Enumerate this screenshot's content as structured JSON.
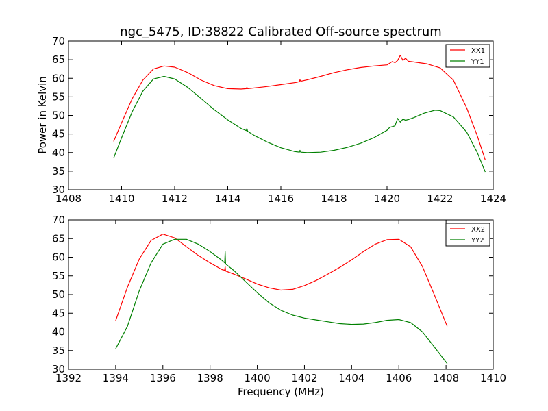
{
  "colors": {
    "red": "#ff0000",
    "green": "#008000"
  },
  "chart_data": [
    {
      "type": "line",
      "title": "ngc_5475, ID:38822 Calibrated Off-source spectrum",
      "xlabel": "",
      "ylabel": "Power in Kelvin",
      "xlim": [
        1408,
        1424
      ],
      "ylim": [
        30,
        70
      ],
      "xticks": [
        1408,
        1410,
        1412,
        1414,
        1416,
        1418,
        1420,
        1422,
        1424
      ],
      "yticks": [
        30,
        35,
        40,
        45,
        50,
        55,
        60,
        65,
        70
      ],
      "legend_position": "top-right",
      "series": [
        {
          "name": "XX1",
          "color": "#ff0000",
          "x": [
            1409.7,
            1410.0,
            1410.4,
            1410.8,
            1411.2,
            1411.6,
            1412.0,
            1412.5,
            1413.0,
            1413.5,
            1414.0,
            1414.5,
            1414.7,
            1414.72,
            1414.75,
            1415.0,
            1415.5,
            1416.0,
            1416.6,
            1416.7,
            1416.72,
            1416.75,
            1417.0,
            1417.5,
            1418.0,
            1418.5,
            1419.0,
            1419.5,
            1420.0,
            1420.2,
            1420.3,
            1420.4,
            1420.5,
            1420.6,
            1420.7,
            1420.8,
            1421.0,
            1421.5,
            1422.0,
            1422.5,
            1423.0,
            1423.4,
            1423.7
          ],
          "y": [
            43,
            48,
            54.5,
            59.5,
            62.5,
            63.3,
            63,
            61.5,
            59.5,
            58,
            57.2,
            57.1,
            57.2,
            57.6,
            57.2,
            57.4,
            57.8,
            58.3,
            58.9,
            59.1,
            59.6,
            59.2,
            59.6,
            60.5,
            61.5,
            62.3,
            62.9,
            63.3,
            63.6,
            64.5,
            64.2,
            64.8,
            66.2,
            64.8,
            65.4,
            64.6,
            64.4,
            63.9,
            62.8,
            59.5,
            52,
            44.5,
            38
          ]
        },
        {
          "name": "YY1",
          "color": "#008000",
          "x": [
            1409.7,
            1410.0,
            1410.4,
            1410.8,
            1411.2,
            1411.6,
            1412.0,
            1412.5,
            1413.0,
            1413.5,
            1414.0,
            1414.5,
            1414.7,
            1414.72,
            1414.75,
            1415.0,
            1415.5,
            1416.0,
            1416.5,
            1416.7,
            1416.72,
            1416.75,
            1417.0,
            1417.5,
            1418.0,
            1418.5,
            1419.0,
            1419.5,
            1420.0,
            1420.1,
            1420.3,
            1420.4,
            1420.5,
            1420.6,
            1420.7,
            1420.8,
            1421.0,
            1421.4,
            1421.8,
            1422.0,
            1422.5,
            1423.0,
            1423.4,
            1423.7
          ],
          "y": [
            38.5,
            44,
            51,
            56.5,
            59.8,
            60.5,
            59.8,
            57.5,
            54.5,
            51.5,
            48.8,
            46.5,
            45.9,
            46.5,
            45.7,
            44.6,
            42.8,
            41.3,
            40.3,
            40.1,
            40.6,
            40.1,
            40,
            40.1,
            40.6,
            41.4,
            42.5,
            44,
            46,
            46.8,
            47.2,
            49.2,
            48.2,
            49.0,
            48.7,
            48.9,
            49.4,
            50.6,
            51.4,
            51.3,
            49.6,
            45.5,
            40,
            34.8
          ]
        }
      ]
    },
    {
      "type": "line",
      "title": "",
      "xlabel": "Frequency (MHz)",
      "ylabel": "",
      "xlim": [
        1392,
        1410
      ],
      "ylim": [
        30,
        70
      ],
      "xticks": [
        1392,
        1394,
        1396,
        1398,
        1400,
        1402,
        1404,
        1406,
        1408,
        1410
      ],
      "yticks": [
        30,
        35,
        40,
        45,
        50,
        55,
        60,
        65,
        70
      ],
      "legend_position": "top-right",
      "series": [
        {
          "name": "XX2",
          "color": "#ff0000",
          "x": [
            1394.0,
            1394.5,
            1395.0,
            1395.5,
            1396.0,
            1396.5,
            1397.0,
            1397.5,
            1398.0,
            1398.5,
            1398.62,
            1398.64,
            1398.66,
            1399.0,
            1399.5,
            1400.0,
            1400.5,
            1401.0,
            1401.5,
            1402.0,
            1402.5,
            1403.0,
            1403.5,
            1404.0,
            1404.5,
            1405.0,
            1405.5,
            1406.0,
            1406.5,
            1407.0,
            1407.5,
            1408.05
          ],
          "y": [
            43,
            52,
            59.5,
            64.5,
            66.2,
            65.2,
            62.8,
            60.5,
            58.5,
            56.7,
            56.5,
            57.5,
            56.3,
            55.5,
            54.2,
            52.8,
            51.8,
            51.2,
            51.4,
            52.4,
            53.8,
            55.5,
            57.3,
            59.3,
            61.5,
            63.5,
            64.7,
            64.8,
            62.8,
            57.5,
            50,
            41.5
          ]
        },
        {
          "name": "YY2",
          "color": "#008000",
          "x": [
            1394.0,
            1394.5,
            1395.0,
            1395.5,
            1396.0,
            1396.5,
            1397.0,
            1397.5,
            1398.0,
            1398.5,
            1398.62,
            1398.64,
            1398.66,
            1399.0,
            1399.5,
            1400.0,
            1400.5,
            1401.0,
            1401.5,
            1402.0,
            1402.5,
            1403.0,
            1403.5,
            1404.0,
            1404.5,
            1405.0,
            1405.5,
            1406.0,
            1406.5,
            1407.0,
            1407.5,
            1408.05
          ],
          "y": [
            35.5,
            41.5,
            51,
            58.5,
            63.5,
            64.8,
            64.8,
            63.5,
            61.5,
            59.2,
            58.5,
            61.5,
            58.2,
            56.5,
            53.5,
            50.5,
            47.8,
            45.8,
            44.5,
            43.7,
            43.2,
            42.7,
            42.2,
            42,
            42.1,
            42.5,
            43.1,
            43.3,
            42.5,
            40,
            36,
            31.5
          ]
        }
      ]
    }
  ]
}
